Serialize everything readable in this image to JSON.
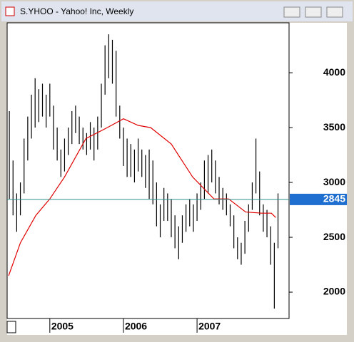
{
  "chart_data": {
    "type": "ohlc",
    "title": "S.YHOO - Yahoo! Inc, Weekly",
    "xlim": [
      2004.42,
      2008.25
    ],
    "xticks": [
      2005,
      2006,
      2007
    ],
    "ylim": [
      1760,
      4455
    ],
    "yticks": [
      2000,
      2500,
      3000,
      3500,
      4000
    ],
    "bar_color": "#000000",
    "x": [
      2004.45,
      2004.5,
      2004.55,
      2004.6,
      2004.65,
      2004.7,
      2004.75,
      2004.8,
      2004.85,
      2004.9,
      2004.95,
      2005.0,
      2005.05,
      2005.1,
      2005.15,
      2005.2,
      2005.25,
      2005.3,
      2005.35,
      2005.4,
      2005.45,
      2005.5,
      2005.55,
      2005.6,
      2005.65,
      2005.7,
      2005.75,
      2005.8,
      2005.85,
      2005.9,
      2005.95,
      2006.0,
      2006.05,
      2006.1,
      2006.15,
      2006.2,
      2006.25,
      2006.3,
      2006.35,
      2006.4,
      2006.45,
      2006.5,
      2006.55,
      2006.6,
      2006.65,
      2006.7,
      2006.75,
      2006.8,
      2006.85,
      2006.9,
      2006.95,
      2007.0,
      2007.05,
      2007.1,
      2007.15,
      2007.2,
      2007.25,
      2007.3,
      2007.35,
      2007.4,
      2007.45,
      2007.5,
      2007.55,
      2007.6,
      2007.65,
      2007.7,
      2007.75,
      2007.8,
      2007.85,
      2007.9,
      2007.95,
      2008.0,
      2008.05,
      2008.1
    ],
    "high": [
      3650,
      3200,
      2900,
      3000,
      3400,
      3600,
      3800,
      3950,
      3850,
      3900,
      3800,
      3900,
      3700,
      3500,
      3300,
      3400,
      3500,
      3650,
      3700,
      3600,
      3500,
      3450,
      3550,
      3500,
      3600,
      3900,
      4250,
      4350,
      4300,
      4200,
      3700,
      3500,
      3400,
      3350,
      3300,
      3400,
      3300,
      3250,
      3300,
      3200,
      3000,
      2800,
      2950,
      2900,
      2850,
      2700,
      2600,
      2700,
      2800,
      2850,
      2800,
      2900,
      3000,
      3200,
      3250,
      3300,
      3200,
      3050,
      2950,
      2900,
      2800,
      2700,
      2500,
      2450,
      2650,
      2800,
      3000,
      3400,
      3100,
      2800,
      2750,
      2600,
      2450,
      2900
    ],
    "low": [
      2850,
      2700,
      2550,
      2700,
      2900,
      3200,
      3400,
      3500,
      3550,
      3600,
      3500,
      3600,
      3300,
      3200,
      3050,
      3100,
      3250,
      3350,
      3450,
      3350,
      3300,
      3250,
      3300,
      3200,
      3300,
      3500,
      3800,
      3950,
      3900,
      3600,
      3400,
      3150,
      3050,
      3050,
      3000,
      3100,
      3050,
      2950,
      2850,
      2800,
      2600,
      2500,
      2650,
      2650,
      2500,
      2400,
      2300,
      2450,
      2550,
      2600,
      2550,
      2650,
      2750,
      2850,
      2900,
      3000,
      2900,
      2800,
      2750,
      2700,
      2600,
      2400,
      2300,
      2250,
      2350,
      2550,
      2750,
      2900,
      2700,
      2550,
      2500,
      2250,
      1850,
      2400
    ],
    "moving_average": {
      "color": "#e00000",
      "x": [
        2004.44,
        2004.6,
        2004.81,
        2005.0,
        2005.2,
        2005.49,
        2005.78,
        2006.0,
        2006.2,
        2006.37,
        2006.65,
        2006.94,
        2007.23,
        2007.43,
        2007.66,
        2007.88,
        2008.01,
        2008.07
      ],
      "values": [
        2150,
        2450,
        2700,
        2850,
        3050,
        3400,
        3500,
        3580,
        3520,
        3500,
        3350,
        3050,
        2850,
        2850,
        2730,
        2720,
        2720,
        2680
      ]
    },
    "last_price": {
      "value": 2845,
      "color": "#2c8f8f",
      "label_color": "#1f6fd1"
    }
  }
}
